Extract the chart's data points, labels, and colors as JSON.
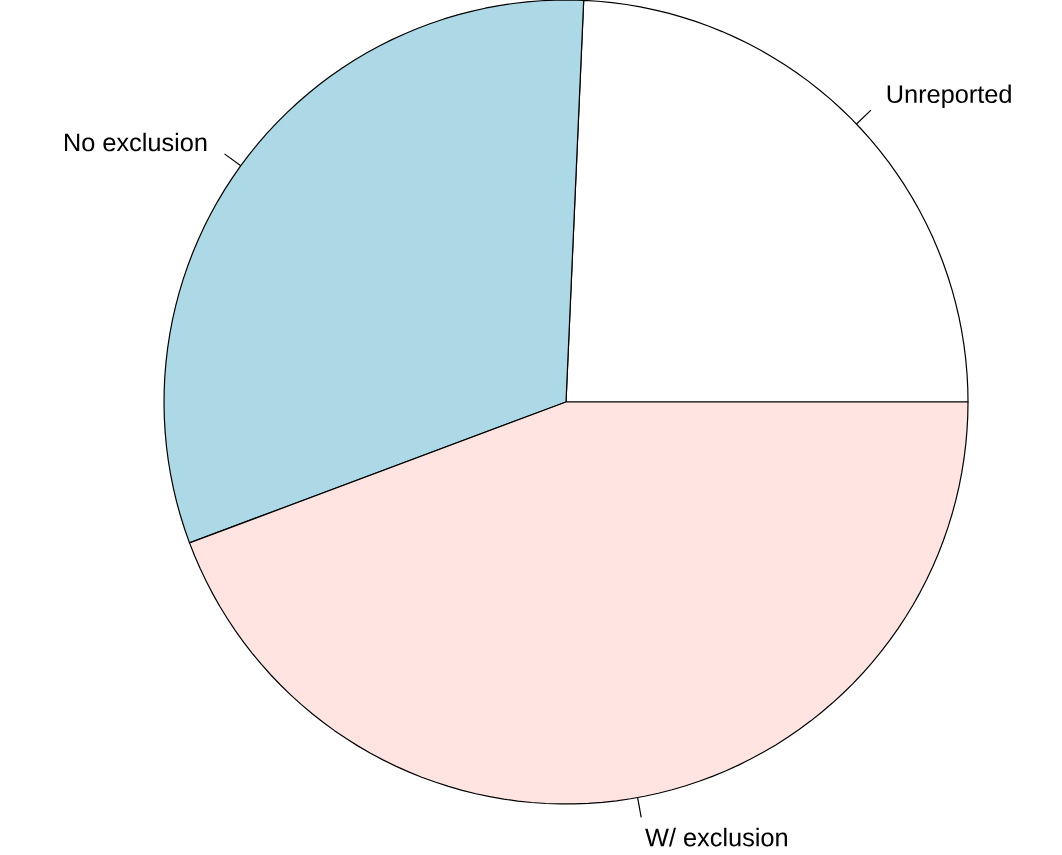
{
  "chart_data": {
    "type": "pie",
    "categories": [
      "Unreported",
      "No exclusion",
      "W/ exclusion"
    ],
    "values": [
      24.3,
      31.4,
      44.3
    ],
    "colors": [
      "#ffffff",
      "#add8e6",
      "#ffe4e1"
    ]
  }
}
